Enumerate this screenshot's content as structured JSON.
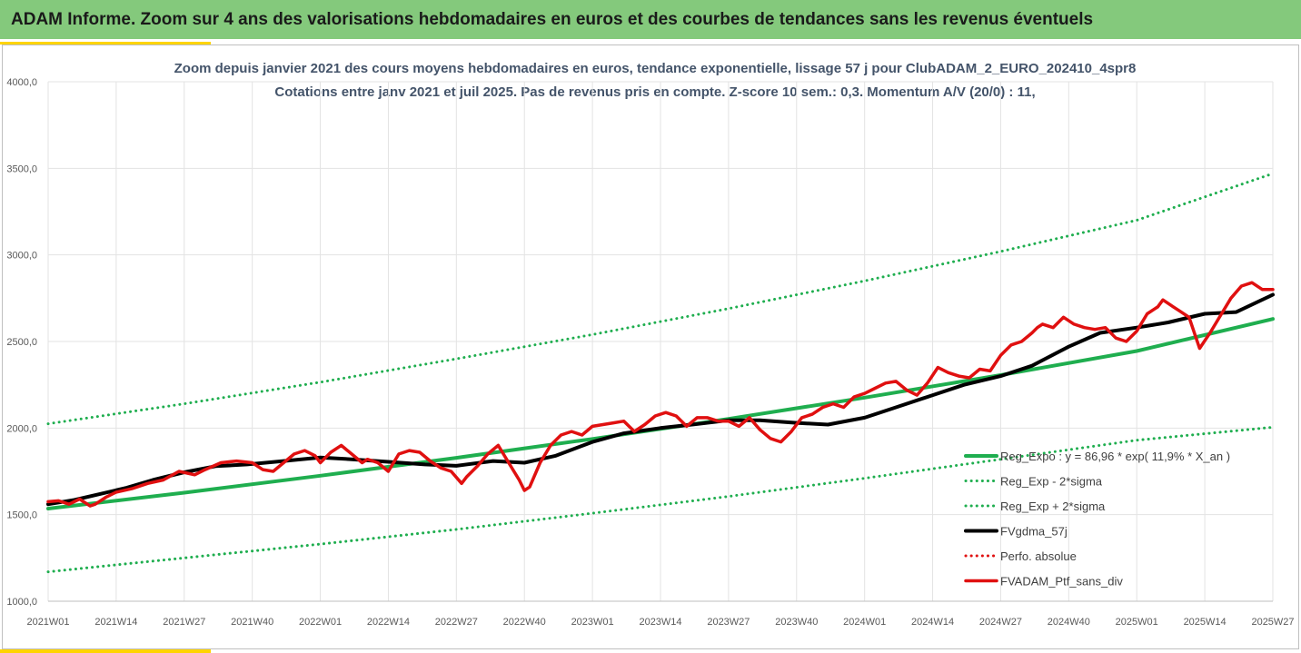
{
  "header": {
    "title": "ADAM Informe. Zoom sur 4 ans des valorisations hebdomadaires en euros et des courbes de tendances sans les revenus éventuels"
  },
  "colors": {
    "header_bg": "#84c97c",
    "accent_yellow": "#ffd400",
    "trend_green": "#1fae4f",
    "band_green": "#1fae4f",
    "smooth_black": "#000000",
    "perf_red": "#e01010"
  },
  "chart_data": {
    "type": "line",
    "title": "Zoom depuis janvier 2021 des cours moyens hebdomadaires  en euros, tendance exponentielle, lissage 57 j pour ClubADAM_2_EURO_202410_4spr8",
    "subtitle": "Cotations entre janv 2021 et juil 2025. Pas de revenus pris en compte. Z-score 10 sem.: 0,3. Momentum A/V (20/0) : 11,",
    "xlabel": "",
    "ylabel": "",
    "ylim": [
      1000,
      4000
    ],
    "y_ticks": [
      "1000,0",
      "1500,0",
      "2000,0",
      "2500,0",
      "3000,0",
      "3500,0",
      "4000,0"
    ],
    "x_ticks": [
      "2021W01",
      "2021W14",
      "2021W27",
      "2021W40",
      "2022W01",
      "2022W14",
      "2022W27",
      "2022W40",
      "2023W01",
      "2023W14",
      "2023W27",
      "2023W40",
      "2024W01",
      "2024W14",
      "2024W27",
      "2024W40",
      "2025W01",
      "2025W14",
      "2025W27"
    ],
    "grid": true,
    "legend_position": "bottom-right",
    "x_units": "weeks since 2021W01",
    "series": [
      {
        "name": "Reg_Expo : y = 86,96 * exp( 11,9% *  X_an )",
        "style": "solid",
        "color": "#1fae4f",
        "x": [
          0,
          26,
          52,
          78,
          104,
          130,
          156,
          182,
          208,
          234
        ],
        "y": [
          1535,
          1627,
          1725,
          1828,
          1937,
          2053,
          2176,
          2306,
          2445,
          2630
        ]
      },
      {
        "name": "Reg_Exp - 2*sigma",
        "style": "dotted",
        "color": "#1fae4f",
        "x": [
          0,
          26,
          52,
          78,
          104,
          130,
          156,
          182,
          208,
          234
        ],
        "y": [
          1170,
          1250,
          1330,
          1415,
          1508,
          1605,
          1710,
          1820,
          1930,
          2005
        ]
      },
      {
        "name": "Reg_Exp + 2*sigma",
        "style": "dotted",
        "color": "#1fae4f",
        "x": [
          0,
          26,
          52,
          78,
          104,
          130,
          156,
          182,
          208,
          234
        ],
        "y": [
          2025,
          2140,
          2265,
          2400,
          2540,
          2690,
          2850,
          3020,
          3200,
          3470
        ]
      },
      {
        "name": "FVgdma_57j",
        "style": "solid",
        "color": "#000000",
        "x": [
          0,
          5,
          10,
          15,
          20,
          26,
          32,
          38,
          45,
          52,
          58,
          65,
          72,
          78,
          85,
          91,
          97,
          104,
          110,
          117,
          123,
          130,
          136,
          143,
          149,
          156,
          162,
          169,
          175,
          182,
          188,
          195,
          201,
          208,
          214,
          221,
          227,
          234
        ],
        "y": [
          1560,
          1585,
          1620,
          1655,
          1700,
          1745,
          1780,
          1790,
          1810,
          1830,
          1820,
          1805,
          1790,
          1782,
          1810,
          1800,
          1840,
          1920,
          1970,
          2000,
          2020,
          2045,
          2045,
          2030,
          2020,
          2060,
          2120,
          2190,
          2250,
          2300,
          2360,
          2470,
          2550,
          2580,
          2610,
          2660,
          2670,
          2770
        ]
      },
      {
        "name": "Perfo. absolue",
        "style": "dotted",
        "color": "#e01010",
        "x": [],
        "y": []
      },
      {
        "name": "FVADAM_Ptf_sans_div",
        "style": "solid",
        "color": "#e01010",
        "x": [
          0,
          2,
          4,
          6,
          8,
          9,
          11,
          13,
          16,
          19,
          22,
          25,
          28,
          30,
          33,
          36,
          39,
          41,
          43,
          45,
          47,
          49,
          51,
          52,
          54,
          56,
          58,
          60,
          61,
          63,
          65,
          67,
          69,
          71,
          73,
          75,
          77,
          79,
          80,
          82,
          84,
          86,
          88,
          90,
          91,
          92,
          94,
          96,
          98,
          100,
          102,
          104,
          106,
          108,
          110,
          112,
          114,
          116,
          118,
          120,
          122,
          124,
          126,
          128,
          130,
          132,
          134,
          136,
          138,
          140,
          142,
          144,
          146,
          148,
          150,
          152,
          154,
          156,
          158,
          160,
          162,
          164,
          166,
          168,
          170,
          172,
          174,
          176,
          178,
          180,
          182,
          184,
          186,
          188,
          189,
          190,
          192,
          194,
          196,
          198,
          200,
          202,
          204,
          206,
          208,
          210,
          212,
          213,
          214,
          215,
          216,
          218,
          220,
          222,
          224,
          226,
          228,
          230,
          232,
          234
        ],
        "y": [
          1575,
          1580,
          1560,
          1590,
          1550,
          1560,
          1600,
          1630,
          1650,
          1680,
          1700,
          1750,
          1730,
          1760,
          1800,
          1810,
          1800,
          1760,
          1750,
          1800,
          1850,
          1870,
          1840,
          1800,
          1860,
          1900,
          1850,
          1800,
          1820,
          1800,
          1750,
          1850,
          1870,
          1860,
          1810,
          1770,
          1750,
          1680,
          1720,
          1780,
          1850,
          1900,
          1800,
          1700,
          1640,
          1660,
          1800,
          1900,
          1960,
          1980,
          1960,
          2010,
          2020,
          2030,
          2040,
          1980,
          2020,
          2070,
          2090,
          2070,
          2010,
          2060,
          2060,
          2040,
          2040,
          2010,
          2060,
          1990,
          1940,
          1920,
          1980,
          2060,
          2080,
          2120,
          2140,
          2120,
          2180,
          2200,
          2230,
          2260,
          2270,
          2220,
          2190,
          2260,
          2350,
          2320,
          2300,
          2290,
          2340,
          2330,
          2420,
          2480,
          2500,
          2550,
          2580,
          2600,
          2580,
          2640,
          2600,
          2580,
          2570,
          2580,
          2520,
          2500,
          2560,
          2660,
          2700,
          2740,
          2720,
          2700,
          2680,
          2640,
          2460,
          2550,
          2650,
          2750,
          2820,
          2840,
          2800,
          2800
        ]
      }
    ]
  }
}
